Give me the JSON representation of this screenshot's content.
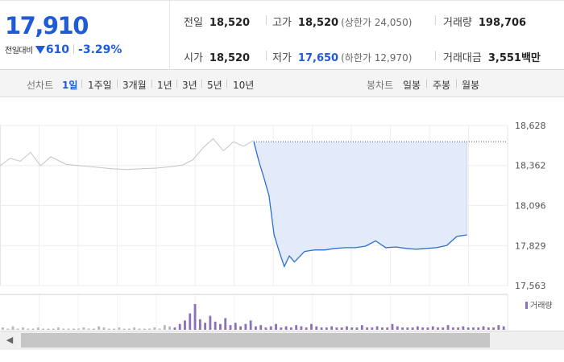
{
  "summary": {
    "price": "17,910",
    "change_label": "전일대비",
    "change_value": "610",
    "change_rate": "-3.29%",
    "stats": {
      "prev_close": {
        "label": "전일",
        "value": "18,520"
      },
      "open": {
        "label": "시가",
        "value": "18,520"
      },
      "high": {
        "label": "고가",
        "value": "18,520",
        "sub": "(상한가 24,050)"
      },
      "low": {
        "label": "저가",
        "value": "17,650",
        "sub": "(하한가 12,970)"
      },
      "volume": {
        "label": "거래량",
        "value": "198,706"
      },
      "amount": {
        "label": "거래대금",
        "value": "3,551",
        "unit": "백만"
      }
    }
  },
  "period_bar": {
    "line_label": "선차트",
    "line_options": [
      "1일",
      "1주일",
      "3개월",
      "1년",
      "3년",
      "5년",
      "10년"
    ],
    "active": "1일",
    "candle_label": "봉차트",
    "candle_options": [
      "일봉",
      "주봉",
      "월봉"
    ]
  },
  "colors": {
    "accent_blue": "#1f5ad7",
    "line_today": "#2b6fd6",
    "line_prev": "#c4c4c4",
    "area_fill": "#e3ebfa",
    "volume_bar": "#8a72b8"
  },
  "chart_data": {
    "type": "line",
    "ylim": [
      17563,
      18628
    ],
    "yticks": [
      "18,628",
      "18,362",
      "18,096",
      "17,829",
      "17,563"
    ],
    "ytick_values": [
      18628,
      18362,
      18096,
      17829,
      17563
    ],
    "reference_line": 18520,
    "series": [
      {
        "x": [
          0,
          0.02,
          0.04,
          0.06,
          0.08,
          0.1,
          0.13,
          0.16,
          0.19,
          0.22,
          0.25,
          0.28,
          0.31,
          0.34,
          0.36,
          0.38,
          0.4,
          0.42,
          0.44,
          0.46,
          0.48,
          0.5
        ],
        "values": [
          18360,
          18410,
          18390,
          18450,
          18360,
          18420,
          18370,
          18360,
          18350,
          18340,
          18335,
          18340,
          18345,
          18355,
          18365,
          18400,
          18480,
          18540,
          18460,
          18520,
          18490,
          18530
        ]
      },
      {
        "x": [
          0.5,
          0.51,
          0.52,
          0.53,
          0.54,
          0.55,
          0.56,
          0.57,
          0.58,
          0.6,
          0.62,
          0.64,
          0.66,
          0.68,
          0.7,
          0.72,
          0.74,
          0.76,
          0.78,
          0.8,
          0.82,
          0.84,
          0.86,
          0.88,
          0.9,
          0.92
        ],
        "values": [
          18520,
          18390,
          18280,
          18160,
          17900,
          17790,
          17690,
          17760,
          17720,
          17790,
          17800,
          17800,
          17810,
          17815,
          17815,
          17825,
          17860,
          17815,
          17820,
          17810,
          17805,
          17810,
          17815,
          17830,
          17890,
          17900
        ]
      }
    ],
    "volume": {
      "legend": "거래량",
      "values": [
        2,
        1,
        3,
        1,
        2,
        1,
        1,
        2,
        1,
        1,
        1,
        2,
        1,
        1,
        1,
        1,
        2,
        1,
        1,
        3,
        2,
        1,
        1,
        2,
        1,
        1,
        2,
        1,
        1,
        1,
        2,
        1,
        4,
        3,
        2,
        5,
        8,
        14,
        22,
        9,
        6,
        12,
        7,
        5,
        10,
        4,
        6,
        3,
        5,
        8,
        3,
        4,
        2,
        3,
        5,
        2,
        3,
        2,
        4,
        3,
        2,
        5,
        3,
        2,
        2,
        3,
        2,
        2,
        3,
        2,
        2,
        4,
        2,
        2,
        3,
        2,
        2,
        5,
        3,
        2,
        2,
        2,
        3,
        2,
        2,
        3,
        2,
        2,
        4,
        2,
        2,
        3,
        2,
        2,
        2,
        3,
        2,
        2,
        4,
        3
      ]
    }
  }
}
